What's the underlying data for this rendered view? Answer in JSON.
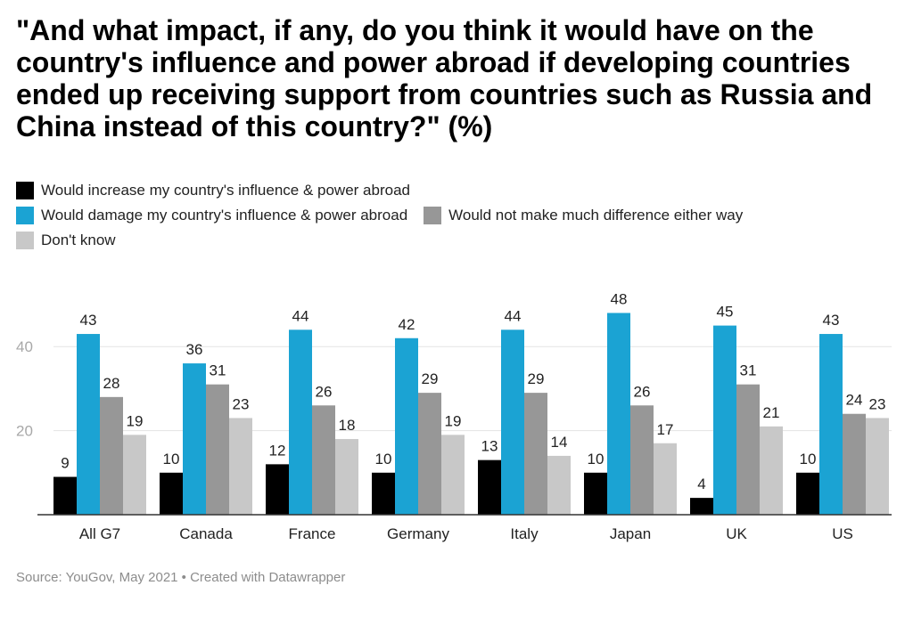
{
  "chart_data": {
    "type": "bar",
    "title": "\"And what impact, if any, do you think it would have on the country's influence and power abroad if developing countries ended up receiving support from countries such as Russia and China instead of this country?\" (%)",
    "categories": [
      "All G7",
      "Canada",
      "France",
      "Germany",
      "Italy",
      "Japan",
      "UK",
      "US"
    ],
    "series": [
      {
        "name": "Would increase my country's influence & power abroad",
        "color": "#000000",
        "values": [
          9,
          10,
          12,
          10,
          13,
          10,
          4,
          10
        ]
      },
      {
        "name": "Would damage my country's influence & power abroad",
        "color": "#1ba3d3",
        "values": [
          43,
          36,
          44,
          42,
          44,
          48,
          45,
          43
        ]
      },
      {
        "name": "Would not make much difference either way",
        "color": "#979797",
        "values": [
          28,
          31,
          26,
          29,
          29,
          26,
          31,
          24
        ]
      },
      {
        "name": "Don't know",
        "color": "#c8c8c8",
        "values": [
          19,
          23,
          18,
          19,
          14,
          17,
          21,
          23
        ]
      }
    ],
    "yticks": [
      20,
      40
    ],
    "ylim": [
      0,
      52
    ],
    "grid": true,
    "legend_position": "top-left",
    "source": "Source: YouGov, May 2021 • Created with Datawrapper"
  }
}
